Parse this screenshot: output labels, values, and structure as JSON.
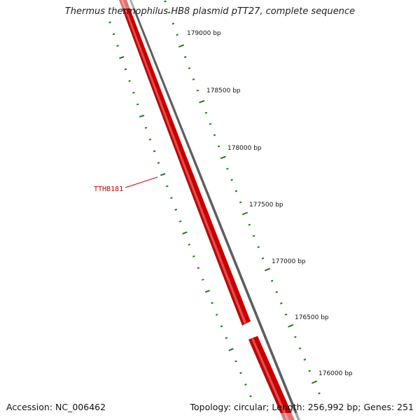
{
  "title": "Thermus thermophilus HB8 plasmid pTT27, complete sequence",
  "accession": "Accession: NC_006462",
  "topology": "Topology: circular; Length: 256,992 bp; Genes: 251",
  "ticks": [
    {
      "label": "179000 bp",
      "bp": 179000
    },
    {
      "label": "178500 bp",
      "bp": 178500
    },
    {
      "label": "178000 bp",
      "bp": 178000
    },
    {
      "label": "177500 bp",
      "bp": 177500
    },
    {
      "label": "177000 bp",
      "bp": 177000
    },
    {
      "label": "176500 bp",
      "bp": 176500
    },
    {
      "label": "176000 bp",
      "bp": 176000
    }
  ],
  "genes": [
    {
      "label": "TTHB181",
      "strand": "reverse",
      "highlighted": true
    }
  ],
  "colors": {
    "gene": "#ff0000",
    "gene_label": "#cc0000",
    "backbone": "#777777",
    "ruler": "#1a7a1a",
    "text": "#111111"
  }
}
